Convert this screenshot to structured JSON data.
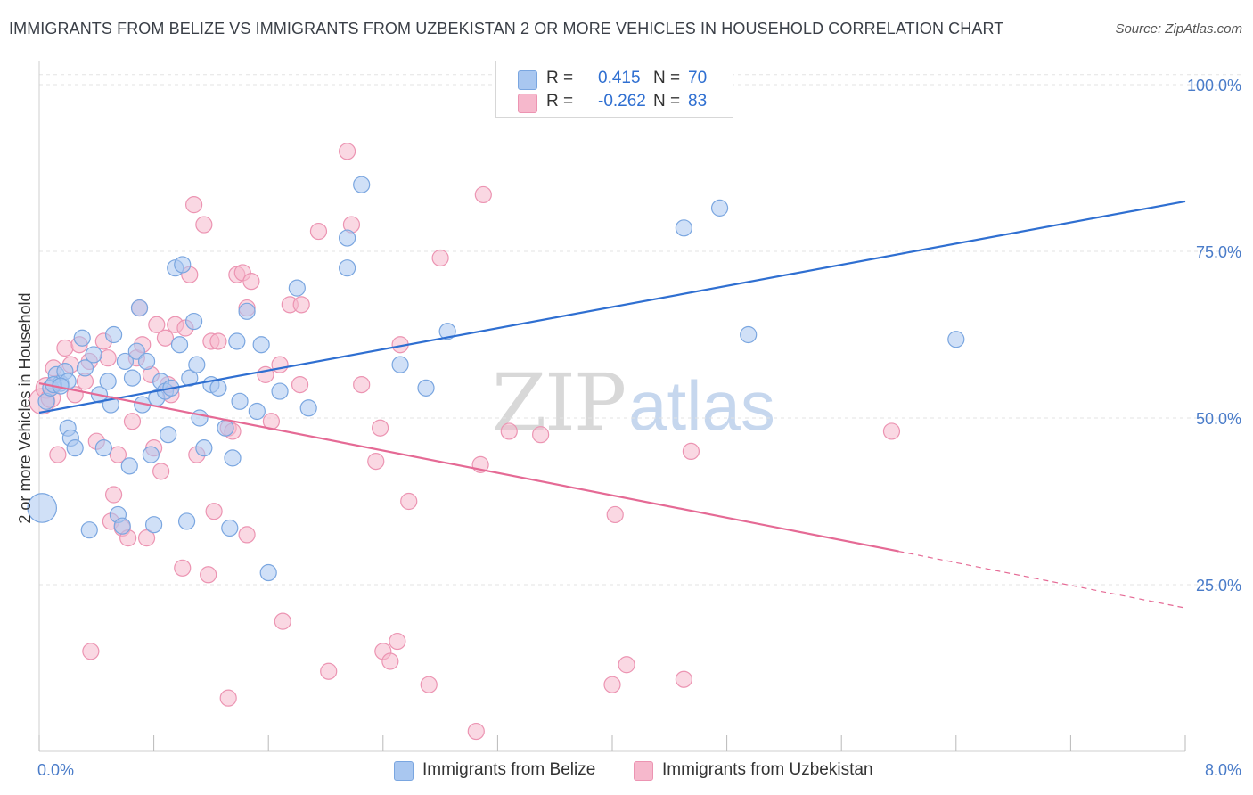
{
  "title": "IMMIGRANTS FROM BELIZE VS IMMIGRANTS FROM UZBEKISTAN 2 OR MORE VEHICLES IN HOUSEHOLD CORRELATION CHART",
  "source": "Source: ZipAtlas.com",
  "watermark": {
    "zip": "ZIP",
    "atlas": "atlas"
  },
  "legend_top": {
    "r_label": "R =",
    "n_label": "N =",
    "rows": [
      {
        "name": "Immigrants from Belize",
        "r": "0.415",
        "n": "70"
      },
      {
        "name": "Immigrants from Uzbekistan",
        "r": "-0.262",
        "n": "83"
      }
    ]
  },
  "colors": {
    "belize_fill": "#a9c7f0",
    "belize_stroke": "#7aa6e0",
    "belize_line": "#2f6fd1",
    "uzbek_fill": "#f6b8cc",
    "uzbek_stroke": "#ec94b2",
    "uzbek_line": "#e56a95",
    "grid": "#e3e3e3",
    "axis_label": "#4a7cc9"
  },
  "chart_data": {
    "type": "scatter",
    "title": "IMMIGRANTS FROM BELIZE VS IMMIGRANTS FROM UZBEKISTAN 2 OR MORE VEHICLES IN HOUSEHOLD CORRELATION CHART",
    "xlabel": "",
    "ylabel": "2 or more Vehicles in Household",
    "xlim": [
      0,
      8
    ],
    "ylim": [
      0,
      100
    ],
    "x_tick_labels": [
      "0.0%",
      "8.0%"
    ],
    "y_ticks": [
      25,
      50,
      75,
      100
    ],
    "y_tick_labels": [
      "25.0%",
      "50.0%",
      "75.0%",
      "100.0%"
    ],
    "legend_position": "top-center",
    "series": [
      {
        "name": "Immigrants from Belize",
        "r": 0.415,
        "n": 70,
        "trend": {
          "x0": 0,
          "y0": 50.8,
          "x1": 8.0,
          "y1": 82.5
        },
        "points": [
          [
            0.02,
            36.5,
            1.8
          ],
          [
            0.05,
            52.5,
            1
          ],
          [
            0.08,
            54.5,
            1
          ],
          [
            0.12,
            56.5,
            1
          ],
          [
            0.15,
            55.2,
            1
          ],
          [
            0.18,
            57.0,
            1
          ],
          [
            0.2,
            48.5,
            1
          ],
          [
            0.2,
            55.5,
            1
          ],
          [
            0.22,
            47.0,
            1
          ],
          [
            0.25,
            45.5,
            1
          ],
          [
            0.3,
            62.0,
            1
          ],
          [
            0.32,
            57.5,
            1
          ],
          [
            0.35,
            33.2,
            1
          ],
          [
            0.38,
            59.5,
            1
          ],
          [
            0.42,
            53.5,
            1
          ],
          [
            0.45,
            45.5,
            1
          ],
          [
            0.48,
            55.5,
            1
          ],
          [
            0.5,
            52.0,
            1
          ],
          [
            0.52,
            62.5,
            1
          ],
          [
            0.55,
            35.5,
            1
          ],
          [
            0.58,
            33.8,
            1
          ],
          [
            0.6,
            58.5,
            1
          ],
          [
            0.63,
            42.8,
            1
          ],
          [
            0.68,
            60.0,
            1
          ],
          [
            0.7,
            66.5,
            1
          ],
          [
            0.72,
            52.0,
            1
          ],
          [
            0.75,
            58.5,
            1
          ],
          [
            0.78,
            44.5,
            1
          ],
          [
            0.8,
            34.0,
            1
          ],
          [
            0.82,
            53.0,
            1
          ],
          [
            0.85,
            55.5,
            1
          ],
          [
            0.88,
            54.0,
            1
          ],
          [
            0.9,
            47.5,
            1
          ],
          [
            0.92,
            54.5,
            1
          ],
          [
            0.95,
            72.5,
            1
          ],
          [
            0.98,
            61.0,
            1
          ],
          [
            1.0,
            73.0,
            1
          ],
          [
            1.03,
            34.5,
            1
          ],
          [
            1.05,
            56.0,
            1
          ],
          [
            1.08,
            64.5,
            1
          ],
          [
            1.1,
            58.0,
            1
          ],
          [
            1.12,
            50.0,
            1
          ],
          [
            1.15,
            45.5,
            1
          ],
          [
            1.2,
            55.0,
            1
          ],
          [
            1.25,
            54.5,
            1
          ],
          [
            1.3,
            48.5,
            1
          ],
          [
            1.33,
            33.5,
            1
          ],
          [
            1.35,
            44.0,
            1
          ],
          [
            1.38,
            61.5,
            1
          ],
          [
            1.4,
            52.5,
            1
          ],
          [
            1.45,
            66.0,
            1
          ],
          [
            1.52,
            51.0,
            1
          ],
          [
            1.55,
            61.0,
            1
          ],
          [
            1.6,
            26.8,
            1
          ],
          [
            1.68,
            54.0,
            1
          ],
          [
            1.8,
            69.5,
            1
          ],
          [
            1.88,
            51.5,
            1
          ],
          [
            2.15,
            72.5,
            1
          ],
          [
            2.15,
            77.0,
            1
          ],
          [
            2.25,
            85.0,
            1
          ],
          [
            2.52,
            58.0,
            1
          ],
          [
            2.7,
            54.5,
            1
          ],
          [
            2.85,
            63.0,
            1
          ],
          [
            4.5,
            78.5,
            1
          ],
          [
            4.75,
            81.5,
            1
          ],
          [
            4.95,
            62.5,
            1
          ],
          [
            6.4,
            61.8,
            1
          ],
          [
            0.1,
            55.0,
            1
          ],
          [
            0.15,
            54.8,
            1
          ],
          [
            0.65,
            56.0,
            1
          ]
        ]
      },
      {
        "name": "Immigrants from Uzbekistan",
        "r": -0.262,
        "n": 83,
        "trend": {
          "x0": 0,
          "y0": 55.2,
          "x1": 6.0,
          "y1": 30.0,
          "dashed_to_x": 8.0,
          "dashed_to_y": 21.5
        },
        "points": [
          [
            0.02,
            52.5,
            1.6
          ],
          [
            0.05,
            54.5,
            1.3
          ],
          [
            0.08,
            53.0,
            1.2
          ],
          [
            0.1,
            57.5,
            1
          ],
          [
            0.13,
            44.5,
            1
          ],
          [
            0.18,
            60.5,
            1
          ],
          [
            0.22,
            58.0,
            1
          ],
          [
            0.25,
            53.5,
            1
          ],
          [
            0.28,
            61.0,
            1
          ],
          [
            0.32,
            55.5,
            1
          ],
          [
            0.35,
            58.5,
            1
          ],
          [
            0.36,
            15.0,
            1
          ],
          [
            0.4,
            46.5,
            1
          ],
          [
            0.45,
            61.5,
            1
          ],
          [
            0.48,
            59.0,
            1
          ],
          [
            0.5,
            34.5,
            1
          ],
          [
            0.52,
            38.5,
            1
          ],
          [
            0.55,
            44.5,
            1
          ],
          [
            0.58,
            33.5,
            1
          ],
          [
            0.62,
            32.0,
            1
          ],
          [
            0.65,
            49.5,
            1
          ],
          [
            0.68,
            59.0,
            1
          ],
          [
            0.7,
            66.5,
            1
          ],
          [
            0.72,
            61.0,
            1
          ],
          [
            0.75,
            32.0,
            1
          ],
          [
            0.78,
            56.5,
            1
          ],
          [
            0.8,
            45.5,
            1
          ],
          [
            0.82,
            64.0,
            1
          ],
          [
            0.85,
            42.0,
            1
          ],
          [
            0.88,
            62.0,
            1
          ],
          [
            0.9,
            55.0,
            1
          ],
          [
            0.92,
            53.5,
            1
          ],
          [
            0.95,
            64.0,
            1
          ],
          [
            1.0,
            27.5,
            1
          ],
          [
            1.02,
            63.5,
            1
          ],
          [
            1.05,
            71.5,
            1
          ],
          [
            1.08,
            82.0,
            1
          ],
          [
            1.1,
            44.5,
            1
          ],
          [
            1.15,
            79.0,
            1
          ],
          [
            1.18,
            26.5,
            1
          ],
          [
            1.2,
            61.5,
            1
          ],
          [
            1.22,
            36.0,
            1
          ],
          [
            1.25,
            61.5,
            1
          ],
          [
            1.32,
            48.5,
            1
          ],
          [
            1.32,
            8.0,
            1
          ],
          [
            1.35,
            48.0,
            1
          ],
          [
            1.38,
            71.5,
            1
          ],
          [
            1.42,
            71.8,
            1
          ],
          [
            1.45,
            32.5,
            1
          ],
          [
            1.45,
            66.5,
            1
          ],
          [
            1.48,
            70.5,
            1
          ],
          [
            1.58,
            56.5,
            1
          ],
          [
            1.62,
            49.5,
            1
          ],
          [
            1.68,
            58.0,
            1
          ],
          [
            1.7,
            19.5,
            1
          ],
          [
            1.75,
            67.0,
            1
          ],
          [
            1.83,
            67.0,
            1
          ],
          [
            1.82,
            55.0,
            1
          ],
          [
            1.95,
            78.0,
            1
          ],
          [
            2.02,
            12.0,
            1
          ],
          [
            2.15,
            90.0,
            1
          ],
          [
            2.18,
            79.0,
            1
          ],
          [
            2.25,
            55.0,
            1
          ],
          [
            2.35,
            43.5,
            1
          ],
          [
            2.38,
            48.5,
            1
          ],
          [
            2.4,
            15.0,
            1
          ],
          [
            2.45,
            13.5,
            1
          ],
          [
            2.5,
            16.5,
            1
          ],
          [
            2.52,
            61.0,
            1
          ],
          [
            2.58,
            37.5,
            1
          ],
          [
            2.72,
            10.0,
            1
          ],
          [
            2.8,
            74.0,
            1
          ],
          [
            3.05,
            3.0,
            1
          ],
          [
            3.08,
            43.0,
            1
          ],
          [
            3.1,
            83.5,
            1
          ],
          [
            3.28,
            48.0,
            1
          ],
          [
            3.5,
            47.5,
            1
          ],
          [
            4.02,
            35.5,
            1
          ],
          [
            4.0,
            10.0,
            1
          ],
          [
            4.1,
            13.0,
            1
          ],
          [
            4.55,
            45.0,
            1
          ],
          [
            4.5,
            10.8,
            1
          ],
          [
            5.95,
            48.0,
            1
          ]
        ]
      }
    ]
  }
}
